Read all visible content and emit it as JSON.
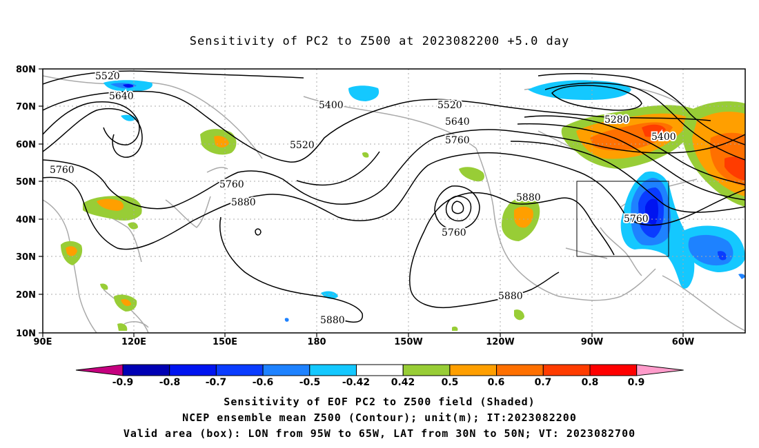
{
  "title": "Sensitivity of PC2 to Z500 at 2023082200 +5.0 day",
  "lat_labels": [
    "80N",
    "70N",
    "60N",
    "50N",
    "40N",
    "30N",
    "20N",
    "10N"
  ],
  "lon_labels": [
    "90E",
    "120E",
    "150E",
    "180",
    "150W",
    "120W",
    "90W",
    "60W"
  ],
  "colorbar": {
    "ticks": [
      "-0.9",
      "-0.8",
      "-0.7",
      "-0.6",
      "-0.5",
      "-0.42",
      "0.42",
      "0.5",
      "0.6",
      "0.7",
      "0.8",
      "0.9"
    ],
    "colors": [
      "#c5007f",
      "#0000b4",
      "#0014f0",
      "#0a3cff",
      "#1e82ff",
      "#14c8ff",
      "#ffffff",
      "#98cd36",
      "#ff9f00",
      "#ff7000",
      "#ff3c00",
      "#ff0000",
      "#ff9ccb"
    ]
  },
  "contour_labels": [
    {
      "text": "5520"
    },
    {
      "text": "5640"
    },
    {
      "text": "5400"
    },
    {
      "text": "5520"
    },
    {
      "text": "5520"
    },
    {
      "text": "5640"
    },
    {
      "text": "5760"
    },
    {
      "text": "5280"
    },
    {
      "text": "5400"
    },
    {
      "text": "5760"
    },
    {
      "text": "5760"
    },
    {
      "text": "5880"
    },
    {
      "text": "5760"
    },
    {
      "text": "5880"
    },
    {
      "text": "5760"
    },
    {
      "text": "5880"
    },
    {
      "text": "5880"
    }
  ],
  "footer": {
    "line1": "Sensitivity of EOF PC2 to Z500 field (Shaded)",
    "line2": "NCEP ensemble mean Z500 (Contour); unit(m); IT:2023082200",
    "line3": "Valid area (box): LON from 95W to 65W, LAT from 30N to 50N; VT: 2023082700"
  }
}
